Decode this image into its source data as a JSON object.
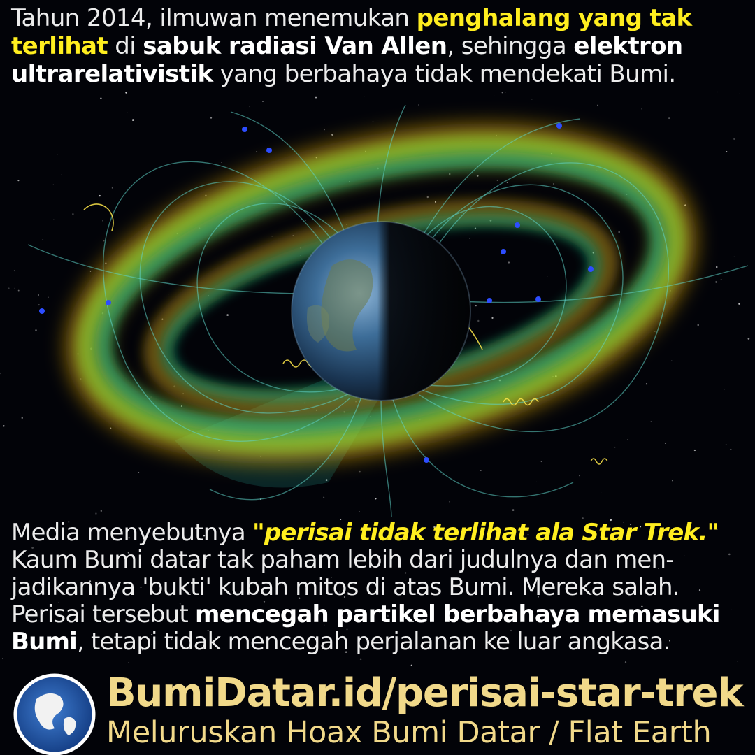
{
  "intro": {
    "t1": "Tahun 2014, ilmuwan menemukan ",
    "h1": "penghalang yang tak terlihat",
    "t2": " di ",
    "b1": "sabuk radiasi Van Allen",
    "t3": ", sehingga ",
    "b2": "elektron ultrarelativistik",
    "t4": " yang berbahaya tidak mendekati Bumi."
  },
  "body": {
    "t1": "Media menyebutnya ",
    "quote": "\"perisai tidak terlihat ala Star Trek.\"",
    "line2": "Kaum Bumi datar tak paham lebih dari judulnya dan men-",
    "line3": "jadikannya 'bukti' kubah mitos di atas Bumi. Mereka salah.",
    "t4": "Perisai tersebut ",
    "b1": "mencegah partikel berbahaya memasuki",
    "b2": "Bumi",
    "t5": ", tetapi tidak mencegah perjalanan ke luar angkasa."
  },
  "footer": {
    "url": "BumiDatar.id/perisai-star-trek",
    "tagline": "Meluruskan Hoax Bumi Datar / Flat Earth"
  },
  "colors": {
    "highlight": "#ffee1f",
    "footer": "#f1d98a",
    "belt_outer": "#f2b619",
    "belt_inner": "#19c98c",
    "field_lines": "#5fd3c9",
    "particles": "#2d4dff"
  },
  "icons": {
    "logo": "globe-logo-icon"
  }
}
